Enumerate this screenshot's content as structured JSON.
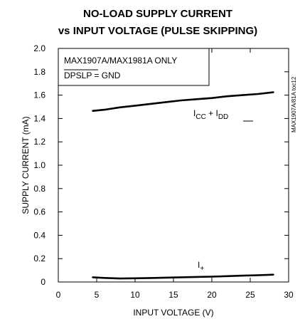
{
  "chart_data": {
    "type": "line",
    "title": "NO-LOAD SUPPLY CURRENT",
    "subtitle": "vs INPUT VOLTAGE (PULSE SKIPPING)",
    "xlabel": "INPUT VOLTAGE (V)",
    "ylabel": "SUPPLY CURRENT (mA)",
    "xlim": [
      0,
      30
    ],
    "ylim": [
      0,
      2.0
    ],
    "xticks": [
      "0",
      "5",
      "10",
      "15",
      "20",
      "25",
      "30"
    ],
    "yticks": [
      "0",
      "0.2",
      "0.4",
      "0.6",
      "0.8",
      "1.0",
      "1.2",
      "1.4",
      "1.6",
      "1.8",
      "2.0"
    ],
    "grid": false,
    "annotations": [
      "MAX1907A/MAX1981A ONLY",
      "DPSLP = GND"
    ],
    "part_number": "MAX1907A/81A toc12",
    "series": [
      {
        "name": "ICC + IDD",
        "label_main": "I",
        "label_sub1": "CC",
        "label_plus": " + I",
        "label_sub2": "DD",
        "x": [
          4.5,
          6,
          8,
          10,
          12,
          14,
          16,
          18,
          20,
          22,
          24,
          26,
          28
        ],
        "y": [
          1.465,
          1.475,
          1.495,
          1.51,
          1.525,
          1.54,
          1.555,
          1.565,
          1.575,
          1.59,
          1.6,
          1.61,
          1.625
        ]
      },
      {
        "name": "I+",
        "label_main": "I",
        "label_sub1": "+",
        "x": [
          4.5,
          6,
          8,
          10,
          12,
          14,
          16,
          18,
          20,
          22,
          24,
          26,
          28
        ],
        "y": [
          0.04,
          0.035,
          0.03,
          0.032,
          0.034,
          0.037,
          0.04,
          0.043,
          0.046,
          0.05,
          0.054,
          0.058,
          0.063
        ]
      }
    ]
  }
}
